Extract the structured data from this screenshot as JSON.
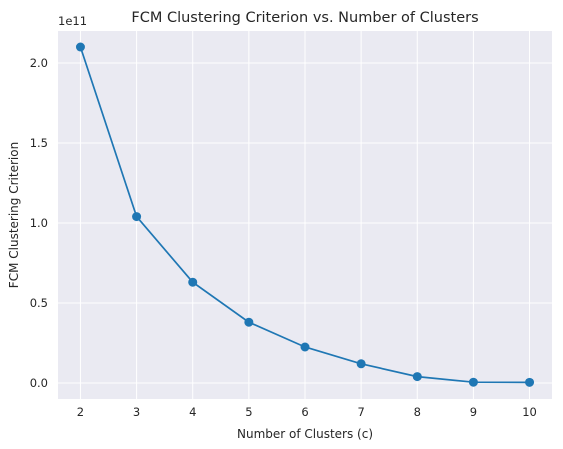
{
  "chart_data": {
    "type": "line",
    "title": "FCM Clustering Criterion vs. Number of Clusters",
    "xlabel": "Number of Clusters (c)",
    "ylabel": "FCM Clustering Criterion",
    "y_offset_label": "1e11",
    "x": [
      2,
      3,
      4,
      5,
      6,
      7,
      8,
      9,
      10
    ],
    "series": [
      {
        "values": [
          2.1,
          1.04,
          0.63,
          0.38,
          0.225,
          0.12,
          0.04,
          0.005,
          0.004
        ]
      }
    ],
    "xticks": [
      2,
      3,
      4,
      5,
      6,
      7,
      8,
      9,
      10
    ],
    "xtick_labels": [
      "2",
      "3",
      "4",
      "5",
      "6",
      "7",
      "8",
      "9",
      "10"
    ],
    "yticks": [
      0.0,
      0.5,
      1.0,
      1.5,
      2.0
    ],
    "ytick_labels": [
      "0.0",
      "0.5",
      "1.0",
      "1.5",
      "2.0"
    ],
    "xlim": [
      1.6,
      10.4
    ],
    "ylim": [
      -0.1,
      2.2
    ],
    "grid": true,
    "colors": {
      "line": "#1f77b4",
      "plot_bg": "#eaeaf2",
      "grid": "#ffffff"
    }
  }
}
